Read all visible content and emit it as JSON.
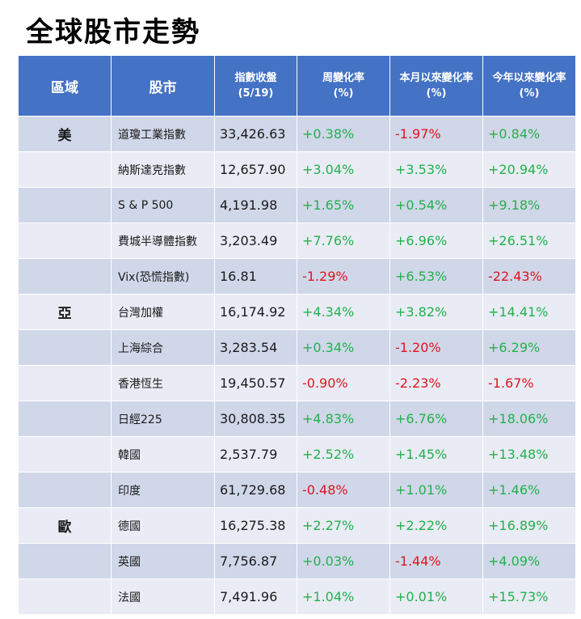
{
  "title": "全球股市走勢",
  "headers": {
    "region": "區域",
    "market": "股市",
    "close_line1": "指數收盤",
    "close_line2": "(5/19)",
    "week_line1": "周變化率",
    "week_line2": "(%)",
    "month_line1": "本月以來變化率",
    "month_line2": "(%)",
    "year_line1": "今年以來變化率",
    "year_line2": "(%)"
  },
  "colors": {
    "header_bg": "#4472c4",
    "positive": "#22b14c",
    "negative": "#e0141e",
    "row_odd": "#d0d7e9",
    "row_even": "#e9ecf5"
  },
  "rows": [
    {
      "region": "美",
      "market": "道瓊工業指數",
      "close": "33,426.63",
      "week": "+0.38%",
      "month": "-1.97%",
      "year": "+0.84%"
    },
    {
      "region": "",
      "market": "納斯達克指數",
      "close": "12,657.90",
      "week": "+3.04%",
      "month": "+3.53%",
      "year": "+20.94%"
    },
    {
      "region": "",
      "market": "S & P 500",
      "close": "4,191.98",
      "week": "+1.65%",
      "month": "+0.54%",
      "year": "+9.18%"
    },
    {
      "region": "",
      "market": "費城半導體指數",
      "close": "3,203.49",
      "week": "+7.76%",
      "month": "+6.96%",
      "year": "+26.51%"
    },
    {
      "region": "",
      "market": "Vix(恐慌指數)",
      "close": "16.81",
      "week": "-1.29%",
      "month": "+6.53%",
      "year": "-22.43%"
    },
    {
      "region": "亞",
      "market": "台灣加權",
      "close": "16,174.92",
      "week": "+4.34%",
      "month": "+3.82%",
      "year": "+14.41%"
    },
    {
      "region": "",
      "market": "上海綜合",
      "close": "3,283.54",
      "week": "+0.34%",
      "month": "-1.20%",
      "year": "+6.29%"
    },
    {
      "region": "",
      "market": "香港恆生",
      "close": "19,450.57",
      "week": "-0.90%",
      "month": "-2.23%",
      "year": "-1.67%"
    },
    {
      "region": "",
      "market": "日經225",
      "close": "30,808.35",
      "week": "+4.83%",
      "month": "+6.76%",
      "year": "+18.06%"
    },
    {
      "region": "",
      "market": "韓國",
      "close": "2,537.79",
      "week": "+2.52%",
      "month": "+1.45%",
      "year": "+13.48%"
    },
    {
      "region": "",
      "market": "印度",
      "close": "61,729.68",
      "week": "-0.48%",
      "month": "+1.01%",
      "year": "+1.46%"
    },
    {
      "region": "歐",
      "market": "德國",
      "close": "16,275.38",
      "week": "+2.27%",
      "month": "+2.22%",
      "year": "+16.89%"
    },
    {
      "region": "",
      "market": "英國",
      "close": "7,756.87",
      "week": "+0.03%",
      "month": "-1.44%",
      "year": "+4.09%"
    },
    {
      "region": "",
      "market": "法國",
      "close": "7,491.96",
      "week": "+1.04%",
      "month": "+0.01%",
      "year": "+15.73%"
    }
  ]
}
